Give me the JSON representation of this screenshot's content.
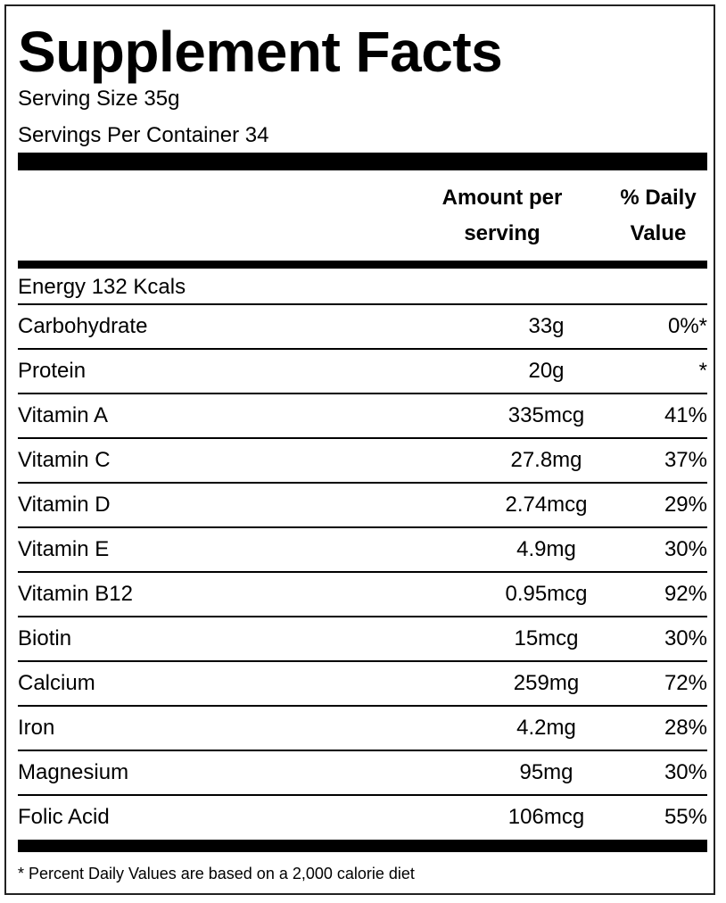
{
  "title": "Supplement Facts",
  "serving_size": "Serving Size 35g",
  "servings_per_container": "Servings Per Container 34",
  "table": {
    "headers": [
      "Amount per serving",
      "% Daily Value"
    ],
    "energy": "Energy 132 Kcals",
    "rows": [
      [
        "Carbohydrate",
        "33g",
        "0%*"
      ],
      [
        "Protein",
        "20g",
        "*"
      ],
      [
        "Vitamin A",
        "335mcg",
        "41%"
      ],
      [
        "Vitamin C",
        "27.8mg",
        "37%"
      ],
      [
        "Vitamin D",
        "2.74mcg",
        "29%"
      ],
      [
        "Vitamin E",
        "4.9mg",
        "30%"
      ],
      [
        "Vitamin B12",
        "0.95mcg",
        "92%"
      ],
      [
        "Biotin",
        "15mcg",
        "30%"
      ],
      [
        "Calcium",
        "259mg",
        "72%"
      ],
      [
        "Iron",
        "4.2mg",
        "28%"
      ],
      [
        "Magnesium",
        "95mg",
        "30%"
      ],
      [
        "Folic Acid",
        "106mcg",
        "55%"
      ]
    ]
  },
  "footnote": "* Percent Daily Values are based on a 2,000 calorie diet"
}
